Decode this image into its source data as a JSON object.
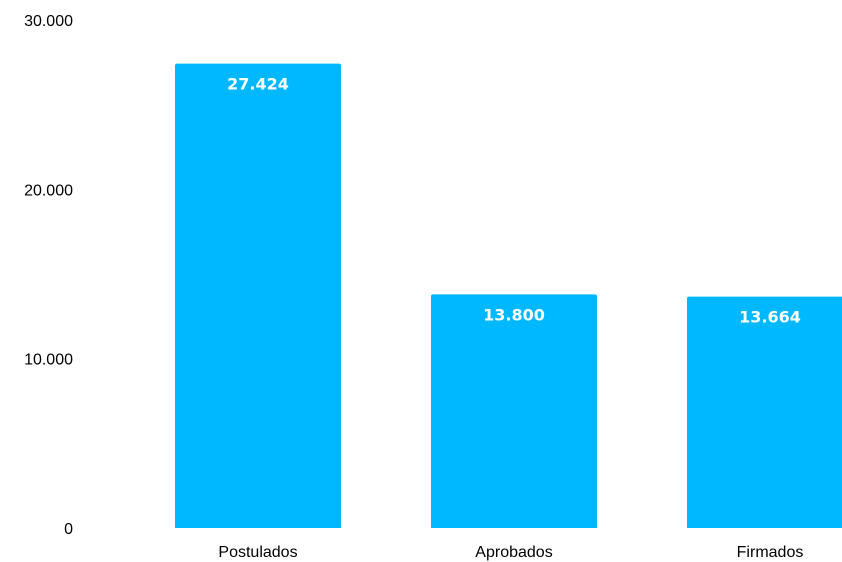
{
  "chart_data": {
    "type": "bar",
    "categories": [
      "Postulados",
      "Aprobados",
      "Firmados"
    ],
    "values": [
      27424,
      13800,
      13664
    ],
    "value_labels": [
      "27.424",
      "13.800",
      "13.664"
    ],
    "title": "",
    "xlabel": "",
    "ylabel": "",
    "ylim": [
      0,
      30000
    ],
    "y_ticks": [
      0,
      10000,
      20000,
      30000
    ],
    "y_tick_labels": [
      "0",
      "10.000",
      "20.000",
      "30.000"
    ],
    "grid": false,
    "legend": "none",
    "bar_color": "#00B8FF",
    "label_color": "#FFFFFF"
  }
}
